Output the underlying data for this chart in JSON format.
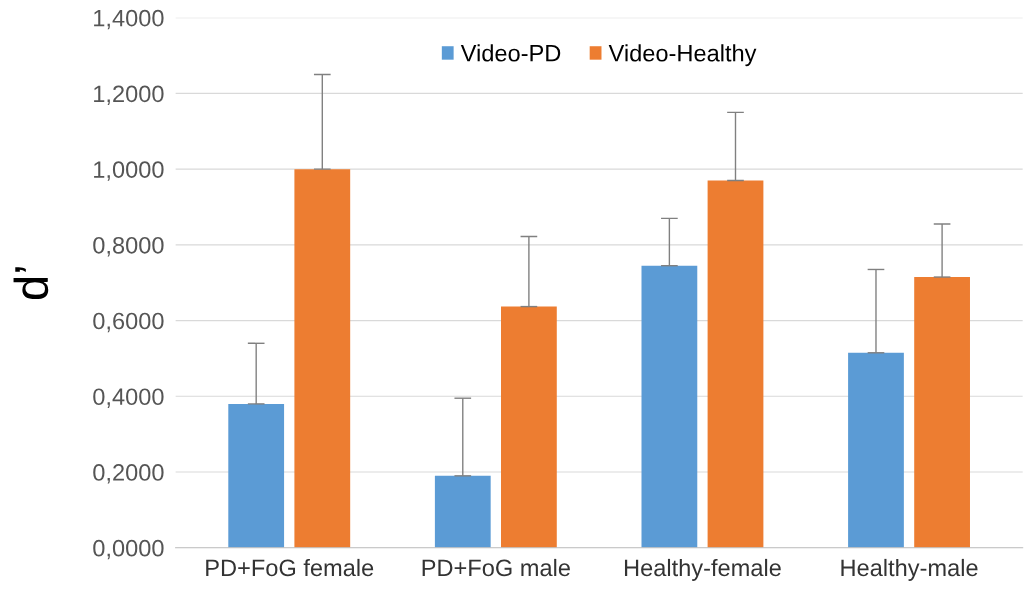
{
  "chart_data": {
    "type": "bar",
    "ylabel": "d’",
    "categories": [
      "PD+FoG female",
      "PD+FoG male",
      "Healthy-female",
      "Healthy-male"
    ],
    "series": [
      {
        "name": "Video-PD",
        "color": "#5b9bd5",
        "values": [
          0.38,
          0.19,
          0.745,
          0.515
        ],
        "errors": [
          [
            0.38,
            0.54
          ],
          [
            0.19,
            0.395
          ],
          [
            0.745,
            0.87
          ],
          [
            0.515,
            0.735
          ]
        ]
      },
      {
        "name": "Video-Healthy",
        "color": "#ed7d31",
        "values": [
          1.0,
          0.637,
          0.97,
          0.715
        ],
        "errors": [
          [
            1.0,
            1.25
          ],
          [
            0.637,
            0.822
          ],
          [
            0.97,
            1.15
          ],
          [
            0.715,
            0.855
          ]
        ]
      }
    ],
    "ylim": [
      0,
      1.4
    ],
    "yticks": [
      {
        "value": 0,
        "label": "0,0000"
      },
      {
        "value": 0.2,
        "label": "0,2000"
      },
      {
        "value": 0.4,
        "label": "0,4000"
      },
      {
        "value": 0.6,
        "label": "0,6000"
      },
      {
        "value": 0.8,
        "label": "0,8000"
      },
      {
        "value": 1.0,
        "label": "1,0000"
      },
      {
        "value": 1.2,
        "label": "1,2000"
      },
      {
        "value": 1.4,
        "label": "1,4000"
      }
    ],
    "grid": "y",
    "legend": "top"
  }
}
